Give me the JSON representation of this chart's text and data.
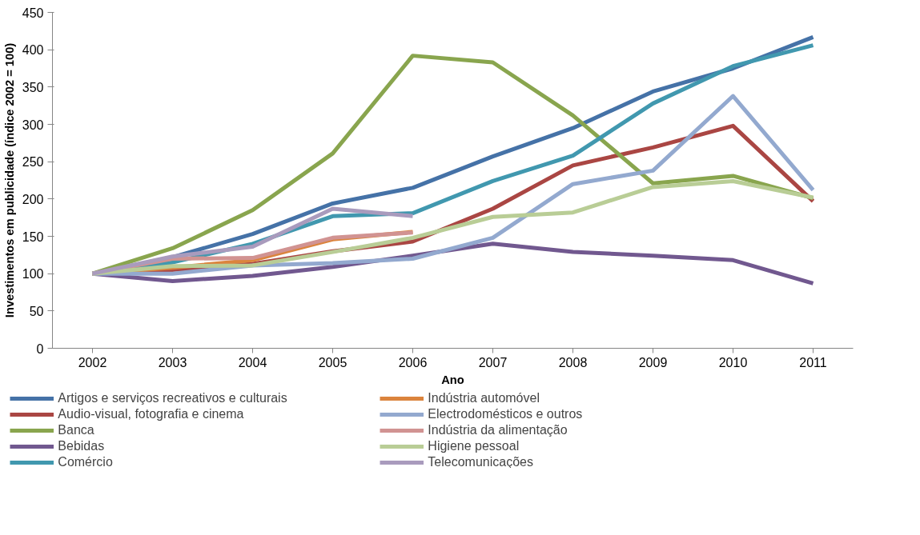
{
  "chart_data": {
    "type": "line",
    "xlabel": "Ano",
    "ylabel": "Investimentos em publicidade (índice 2002 = 100)",
    "categories": [
      "2002",
      "2003",
      "2004",
      "2005",
      "2006",
      "2007",
      "2008",
      "2009",
      "2010",
      "2011"
    ],
    "ylim": [
      0,
      450
    ],
    "yticks": [
      0,
      50,
      100,
      150,
      200,
      250,
      300,
      350,
      400,
      450
    ],
    "grid": false,
    "legend": "bottom",
    "marker": "none",
    "line_style": "solid",
    "series": [
      {
        "name": "Artigos e serviços recreativos e culturais",
        "color": "#4572a7",
        "values": [
          100,
          122,
          153,
          194,
          215,
          257,
          295,
          344,
          375,
          417
        ]
      },
      {
        "name": "Audio-visual, fotografia e cinema",
        "color": "#aa4643",
        "values": [
          100,
          105,
          113,
          130,
          143,
          187,
          245,
          269,
          298,
          197
        ]
      },
      {
        "name": "Banca",
        "color": "#89a54e",
        "values": [
          100,
          134,
          185,
          261,
          392,
          383,
          312,
          221,
          231,
          201
        ]
      },
      {
        "name": "Bebidas",
        "color": "#71588f",
        "values": [
          100,
          90,
          97,
          109,
          124,
          140,
          129,
          124,
          118,
          87
        ]
      },
      {
        "name": "Comércio",
        "color": "#4198af",
        "values": [
          100,
          115,
          140,
          177,
          181,
          224,
          258,
          328,
          378,
          406
        ]
      },
      {
        "name": "Indústria automóvel",
        "color": "#db843d",
        "values": [
          100,
          108,
          118,
          146,
          156,
          null,
          null,
          null,
          null,
          null
        ]
      },
      {
        "name": "Electrodomésticos e outros",
        "color": "#93a9cf",
        "values": [
          100,
          100,
          111,
          114,
          120,
          148,
          220,
          238,
          338,
          212
        ]
      },
      {
        "name": "Indústria da alimentação",
        "color": "#d19392",
        "values": [
          100,
          120,
          121,
          148,
          155,
          null,
          null,
          null,
          null,
          null
        ]
      },
      {
        "name": "Higiene pessoal",
        "color": "#b9cd96",
        "values": [
          100,
          110,
          111,
          129,
          148,
          176,
          182,
          216,
          224,
          202
        ]
      },
      {
        "name": "Telecomunicações",
        "color": "#a99bbd",
        "values": [
          100,
          123,
          136,
          187,
          177,
          null,
          null,
          null,
          null,
          null
        ]
      }
    ]
  }
}
